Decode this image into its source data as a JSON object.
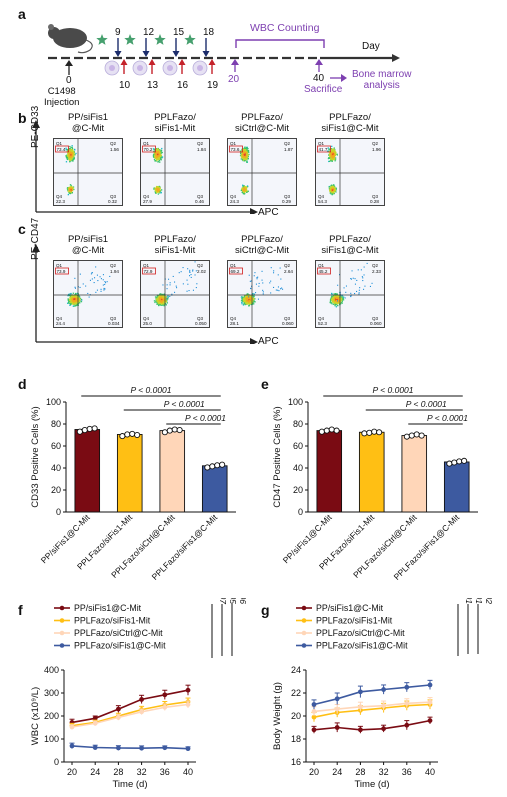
{
  "panels": {
    "a": "a",
    "b": "b",
    "c": "c",
    "d": "d",
    "e": "e",
    "f": "f",
    "g": "g"
  },
  "colors": {
    "pp": "#7a0b13",
    "siFis1_mit": "#ffbf14",
    "sictrl": "#ffd6b8",
    "sifis1": "#3d5aa0",
    "purple": "#7d3fb0",
    "green_star": "#46a06e",
    "arrow_up": "#c4222a",
    "arrow_down": "#1b2c6b"
  },
  "timeline": {
    "day_label": "Day",
    "day0": "0",
    "injection": "C1498\nInjection",
    "up_days": [
      "9",
      "12",
      "15",
      "18"
    ],
    "down_days": [
      "10",
      "13",
      "16",
      "19"
    ],
    "day20": "20",
    "wbc_counting": "WBC Counting",
    "day40": "40",
    "sacrifice": "Sacrifice",
    "bone_marrow": "Bone marrow\nanalysis"
  },
  "flow_b": {
    "y_axis": "PE-CD33",
    "x_axis": "APC",
    "plots": [
      {
        "title": "PP/siFis1\n@C-Mit",
        "q1": "73.4",
        "q2": "1.56",
        "q3": "0.32",
        "q4": "22.3"
      },
      {
        "title": "PPLFazo/\nsiFis1-Mit",
        "q1": "70.2",
        "q2": "1.84",
        "q3": "0.46",
        "q4": "27.9"
      },
      {
        "title": "PPLFazo/\nsiCtrl@C-Mit",
        "q1": "73.6",
        "q2": "1.87",
        "q3": "0.29",
        "q4": "24.3"
      },
      {
        "title": "PPLFazo/\nsiFis1@C-Mit",
        "q1": "41.7",
        "q2": "1.96",
        "q3": "0.28",
        "q4": "54.3"
      }
    ]
  },
  "flow_c": {
    "y_axis": "PE-CD47",
    "x_axis": "APC",
    "plots": [
      {
        "title": "PP/siFis1\n@C-Mit",
        "q1": "73.9",
        "q2": "1.94",
        "q3": "0.034",
        "q4": "24.4"
      },
      {
        "title": "PPLFazo/\nsiFis1-Mit",
        "q1": "72.9",
        "q2": "2.02",
        "q3": "0.050",
        "q4": "25.0"
      },
      {
        "title": "PPLFazo/\nsiCtrl@C-Mit",
        "q1": "69.2",
        "q2": "2.64",
        "q3": "0.060",
        "q4": "28.1"
      },
      {
        "title": "PPLFazo/\nsiFis1@C-Mit",
        "q1": "45.2",
        "q2": "2.33",
        "q3": "0.060",
        "q4": "52.3"
      }
    ]
  },
  "chart_data": [
    {
      "id": "d",
      "type": "bar",
      "ylabel": "CD33 Positive Cells (%)",
      "ylim": [
        0,
        100
      ],
      "yticks": [
        "0",
        "20",
        "40",
        "60",
        "80",
        "100"
      ],
      "categories": [
        "PP/siFis1@C-Mit",
        "PPLFazo/siFis1-Mit",
        "PPLFazo/siCtrl@C-Mit",
        "PPLFazo/siFis1@C-Mit"
      ],
      "values": [
        75,
        70.5,
        74,
        42
      ],
      "points": [
        [
          73,
          74.5,
          75.5,
          76
        ],
        [
          69,
          70.5,
          71,
          70
        ],
        [
          72.5,
          74,
          75,
          74.5
        ],
        [
          40.5,
          41.5,
          42.5,
          43
        ]
      ],
      "colors": [
        "#7a0b13",
        "#ffbf14",
        "#ffd6b8",
        "#3d5aa0"
      ],
      "pvalues": [
        {
          "from": 0,
          "to": 3,
          "label": "P < 0.0001"
        },
        {
          "from": 1,
          "to": 3,
          "label": "P < 0.0001"
        },
        {
          "from": 2,
          "to": 3,
          "label": "P < 0.0001"
        }
      ]
    },
    {
      "id": "e",
      "type": "bar",
      "ylabel": "CD47 Positive Cells (%)",
      "ylim": [
        0,
        100
      ],
      "yticks": [
        "0",
        "20",
        "40",
        "60",
        "80",
        "100"
      ],
      "categories": [
        "PP/siFis1@C-Mit",
        "PPLFazo/siFis1-Mit",
        "PPLFazo/siCtrl@C-Mit",
        "PPLFazo/siFis1@C-Mit"
      ],
      "values": [
        74,
        72.5,
        69.5,
        45.5
      ],
      "points": [
        [
          73,
          74,
          75,
          74
        ],
        [
          71.5,
          72,
          73,
          72.5
        ],
        [
          68.5,
          69.5,
          70.5,
          69.5
        ],
        [
          44,
          45,
          46,
          46.5
        ]
      ],
      "colors": [
        "#7a0b13",
        "#ffbf14",
        "#ffd6b8",
        "#3d5aa0"
      ],
      "pvalues": [
        {
          "from": 0,
          "to": 3,
          "label": "P < 0.0001"
        },
        {
          "from": 1,
          "to": 3,
          "label": "P < 0.0001"
        },
        {
          "from": 2,
          "to": 3,
          "label": "P < 0.0001"
        }
      ]
    },
    {
      "id": "f",
      "type": "line",
      "xlabel": "Time (d)",
      "ylabel": "WBC (x10⁹/L)",
      "x": [
        20,
        24,
        28,
        32,
        36,
        40
      ],
      "xticks": [
        "20",
        "24",
        "28",
        "32",
        "36",
        "40"
      ],
      "ylim": [
        0,
        400
      ],
      "yticks": [
        "0",
        "100",
        "200",
        "300",
        "400"
      ],
      "series": [
        {
          "name": "PP/siFis1@C-Mit",
          "color": "#7a0b13",
          "values": [
            172,
            190,
            230,
            272,
            292,
            312
          ],
          "err": [
            14,
            10,
            15,
            18,
            20,
            22
          ]
        },
        {
          "name": "PPLFazo/siFis1-Mit",
          "color": "#ffbf14",
          "values": [
            158,
            172,
            200,
            228,
            248,
            262
          ],
          "err": [
            10,
            10,
            12,
            14,
            15,
            16
          ]
        },
        {
          "name": "PPLFazo/siCtrl@C-Mit",
          "color": "#ffd6b8",
          "values": [
            152,
            168,
            194,
            218,
            238,
            250
          ],
          "err": [
            10,
            10,
            12,
            12,
            14,
            15
          ]
        },
        {
          "name": "PPLFazo/siFis1@C-Mit",
          "color": "#3d5aa0",
          "values": [
            70,
            63,
            61,
            60,
            62,
            58
          ],
          "err": [
            12,
            10,
            10,
            10,
            8,
            8
          ]
        }
      ],
      "pvalues": [
        "P= 0.0007",
        "P= 0.0005",
        "P= 0.0006"
      ]
    },
    {
      "id": "g",
      "type": "line",
      "xlabel": "Time (d)",
      "ylabel": "Body Weight (g)",
      "x": [
        20,
        24,
        28,
        32,
        36,
        40
      ],
      "xticks": [
        "20",
        "24",
        "28",
        "32",
        "36",
        "40"
      ],
      "ylim": [
        16,
        24
      ],
      "yticks": [
        "16",
        "18",
        "20",
        "22",
        "24"
      ],
      "series": [
        {
          "name": "PP/siFis1@C-Mit",
          "color": "#7a0b13",
          "values": [
            18.8,
            19.0,
            18.8,
            18.9,
            19.2,
            19.6
          ],
          "err": [
            0.3,
            0.4,
            0.3,
            0.3,
            0.4,
            0.3
          ]
        },
        {
          "name": "PPLFazo/siFis1-Mit",
          "color": "#ffbf14",
          "values": [
            19.9,
            20.3,
            20.5,
            20.7,
            20.9,
            21.0
          ],
          "err": [
            0.4,
            0.4,
            0.4,
            0.4,
            0.4,
            0.4
          ]
        },
        {
          "name": "PPLFazo/siCtrl@C-Mit",
          "color": "#ffd6b8",
          "values": [
            20.4,
            20.6,
            20.8,
            20.9,
            21.1,
            21.2
          ],
          "err": [
            0.4,
            0.4,
            0.4,
            0.4,
            0.4,
            0.4
          ]
        },
        {
          "name": "PPLFazo/siFis1@C-Mit",
          "color": "#3d5aa0",
          "values": [
            21.0,
            21.5,
            22.1,
            22.3,
            22.5,
            22.7
          ],
          "err": [
            0.4,
            0.5,
            0.5,
            0.4,
            0.4,
            0.4
          ]
        }
      ],
      "pvalues": [
        "P < 0.0001",
        "P < 0.0001",
        "P = 0.0002"
      ]
    }
  ]
}
